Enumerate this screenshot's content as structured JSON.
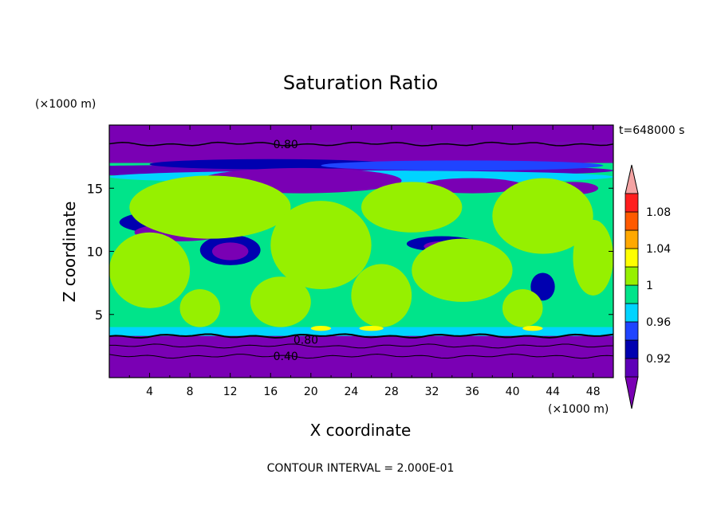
{
  "chart_data": {
    "type": "heatmap",
    "title": "Saturation Ratio",
    "xlabel": "X coordinate",
    "ylabel": "Z coordinate",
    "x_unit": "(×1000 m)",
    "y_unit": "(×1000 m)",
    "time_label": "t=648000 s",
    "footer": "CONTOUR INTERVAL = 2.000E-01",
    "xlim": [
      0,
      50
    ],
    "ylim": [
      0,
      20
    ],
    "x_ticks": [
      4,
      8,
      12,
      16,
      20,
      24,
      28,
      32,
      36,
      40,
      44,
      48
    ],
    "y_ticks": [
      5,
      10,
      15
    ],
    "contour_labels": [
      {
        "text": "0.80",
        "x": 17.5,
        "z": 18.5
      },
      {
        "text": "0.80",
        "x": 19.5,
        "z": 3.0
      },
      {
        "text": "0.40",
        "x": 17.5,
        "z": 1.7
      }
    ],
    "colorbar": {
      "levels": [
        0.9,
        0.92,
        0.94,
        0.96,
        0.98,
        1.0,
        1.02,
        1.04,
        1.06,
        1.08,
        1.1
      ],
      "tick_labels": [
        "0.92",
        "0.96",
        "1",
        "1.04",
        "1.08"
      ],
      "under_color": "#7a00b4",
      "over_color": "#f4a3a3",
      "colors": [
        "#5e00b8",
        "#0000b0",
        "#1f44ff",
        "#00d4ff",
        "#00e48a",
        "#96f000",
        "#ffff00",
        "#ffa800",
        "#ff5a00",
        "#ff1e1e"
      ]
    },
    "bands": [
      {
        "z0": 18.6,
        "z1": 20.0,
        "level": "under"
      },
      {
        "z0": 17.0,
        "z1": 18.6,
        "level": "under"
      },
      {
        "z0": 3.3,
        "z1": 4.0,
        "level": 3
      },
      {
        "z0": 0,
        "z1": 3.3,
        "level": "under"
      }
    ],
    "blobs": [
      {
        "x": 20,
        "z": 16.4,
        "rx": 30,
        "rz": 0.5,
        "level": 0
      },
      {
        "x": 16,
        "z": 16.9,
        "rx": 12,
        "rz": 0.4,
        "level": 1
      },
      {
        "x": 35,
        "z": 16.8,
        "rx": 14,
        "rz": 0.4,
        "level": 2
      },
      {
        "x": 25,
        "z": 15.9,
        "rx": 25,
        "rz": 0.5,
        "level": 3
      },
      {
        "x": 19,
        "z": 15.6,
        "rx": 10,
        "rz": 1.0,
        "level": "under"
      },
      {
        "x": 36,
        "z": 15.2,
        "rx": 5,
        "rz": 0.6,
        "level": "under"
      },
      {
        "x": 46,
        "z": 15.0,
        "rx": 2.5,
        "rz": 0.5,
        "level": "under"
      },
      {
        "x": 7,
        "z": 12.3,
        "rx": 6,
        "rz": 1.0,
        "level": 1
      },
      {
        "x": 7,
        "z": 11.5,
        "rx": 4.5,
        "rz": 0.7,
        "level": "under"
      },
      {
        "x": 12,
        "z": 10.1,
        "rx": 3,
        "rz": 1.2,
        "level": 1
      },
      {
        "x": 12,
        "z": 10.0,
        "rx": 1.8,
        "rz": 0.7,
        "level": "under"
      },
      {
        "x": 33,
        "z": 10.6,
        "rx": 3.5,
        "rz": 0.6,
        "level": 1
      },
      {
        "x": 33,
        "z": 10.4,
        "rx": 1.8,
        "rz": 0.4,
        "level": "under"
      },
      {
        "x": 43,
        "z": 7.2,
        "rx": 1.2,
        "rz": 1.1,
        "level": 1
      },
      {
        "x": 10,
        "z": 13.5,
        "rx": 8,
        "rz": 2.5,
        "level": 5
      },
      {
        "x": 30,
        "z": 13.5,
        "rx": 5,
        "rz": 2.0,
        "level": 5
      },
      {
        "x": 43,
        "z": 12.8,
        "rx": 5,
        "rz": 3.0,
        "level": 5
      },
      {
        "x": 21,
        "z": 10.5,
        "rx": 5,
        "rz": 3.5,
        "level": 5
      },
      {
        "x": 4,
        "z": 8.5,
        "rx": 4,
        "rz": 3.0,
        "level": 5
      },
      {
        "x": 35,
        "z": 8.5,
        "rx": 5,
        "rz": 2.5,
        "level": 5
      },
      {
        "x": 48,
        "z": 9.5,
        "rx": 2,
        "rz": 3.0,
        "level": 5
      },
      {
        "x": 17,
        "z": 6.0,
        "rx": 3,
        "rz": 2.0,
        "level": 5
      },
      {
        "x": 27,
        "z": 6.5,
        "rx": 3,
        "rz": 2.5,
        "level": 5
      },
      {
        "x": 9,
        "z": 5.5,
        "rx": 2,
        "rz": 1.5,
        "level": 5
      },
      {
        "x": 41,
        "z": 5.5,
        "rx": 2,
        "rz": 1.5,
        "level": 5
      },
      {
        "x": 21,
        "z": 3.9,
        "rx": 1,
        "rz": 0.2,
        "level": 6
      },
      {
        "x": 26,
        "z": 3.9,
        "rx": 1.2,
        "rz": 0.2,
        "level": 6
      },
      {
        "x": 42,
        "z": 3.9,
        "rx": 1,
        "rz": 0.2,
        "level": 6
      }
    ],
    "contour_lines": [
      {
        "z": 18.5,
        "width": 1.5
      },
      {
        "z": 3.3,
        "width": 2.0
      },
      {
        "z": 2.5,
        "width": 1.0
      },
      {
        "z": 1.7,
        "width": 1.0
      }
    ]
  }
}
